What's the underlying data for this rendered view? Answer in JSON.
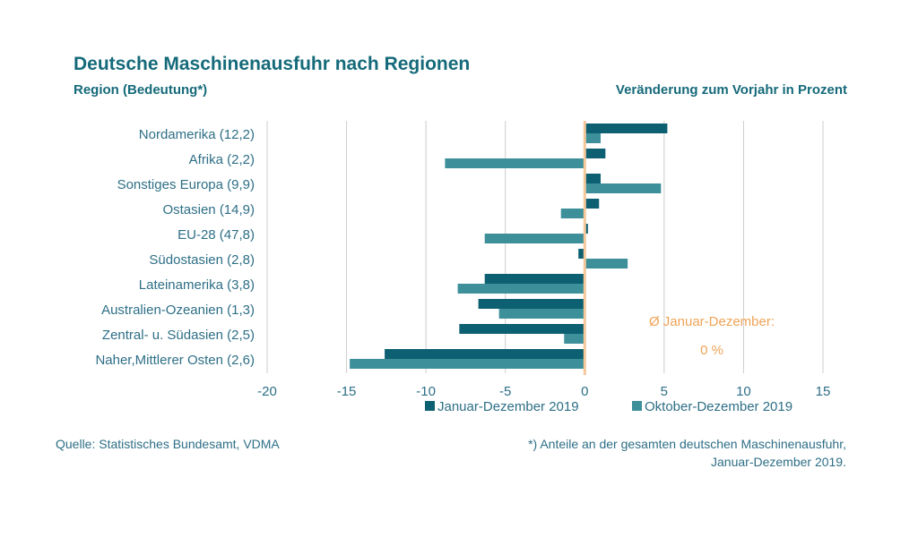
{
  "header": {
    "title": "Deutsche Maschinenausfuhr nach Regionen",
    "left_subtitle": "Region (Bedeutung*)",
    "right_subtitle": "Veränderung zum Vorjahr in Prozent"
  },
  "footer": {
    "source": "Quelle: Statistisches Bundesamt, VDMA",
    "footnote_line1": "*) Anteile an der gesamten deutschen Maschinenausfuhr,",
    "footnote_line2": "Januar-Dezember 2019."
  },
  "annotation": {
    "line1": "Ø Januar-Dezember:",
    "line2": "0 %"
  },
  "colors": {
    "series1": "#0d5f72",
    "series2": "#3d8f9a",
    "zero_line": "#f5c89a",
    "annotation": "#f0a356",
    "grid": "#cccccc",
    "text": "#2e6f86",
    "title": "#156a7a"
  },
  "chart_data": {
    "type": "bar",
    "orientation": "horizontal",
    "categories": [
      "Nordamerika (12,2)",
      "Afrika (2,2)",
      "Sonstiges Europa (9,9)",
      "Ostasien (14,9)",
      "EU-28 (47,8)",
      "Südostasien (2,8)",
      "Lateinamerika (3,8)",
      "Australien-Ozeanien (1,3)",
      "Zentral- u. Südasien (2,5)",
      "Naher,Mittlerer Osten (2,6)"
    ],
    "series": [
      {
        "name": "Januar-Dezember 2019",
        "values": [
          5.2,
          1.3,
          1.0,
          0.9,
          0.2,
          -0.4,
          -6.3,
          -6.7,
          -7.9,
          -12.6
        ]
      },
      {
        "name": "Oktober-Dezember 2019",
        "values": [
          1.0,
          -8.8,
          4.8,
          -1.5,
          -6.3,
          2.7,
          -8.0,
          -5.4,
          -1.3,
          -14.8
        ]
      }
    ],
    "xlim": [
      -20,
      15
    ],
    "xticks": [
      -20,
      -15,
      -10,
      -5,
      0,
      5,
      10,
      15
    ],
    "grid": true,
    "legend_position": "bottom-right"
  }
}
